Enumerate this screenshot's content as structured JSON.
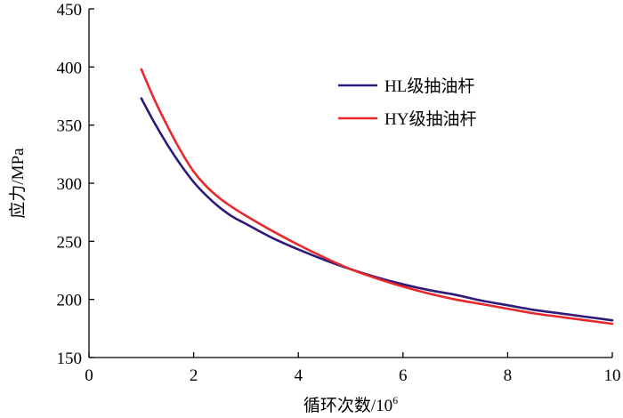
{
  "chart_data": {
    "type": "line",
    "title": "",
    "xlabel": "循环次数/10",
    "xlabel_superscript": "6",
    "ylabel": "应力/MPa",
    "xlim": [
      0,
      10
    ],
    "ylim": [
      150,
      450
    ],
    "x_ticks": [
      0,
      2,
      4,
      6,
      8,
      10
    ],
    "y_ticks": [
      150,
      200,
      250,
      300,
      350,
      400,
      450
    ],
    "grid": false,
    "legend_position": "top-right",
    "series": [
      {
        "name": "HL级抽油杆",
        "color": "#2e1a7a",
        "x": [
          1.0,
          1.25,
          1.5,
          1.75,
          2.0,
          2.25,
          2.5,
          2.75,
          3.0,
          3.5,
          4.0,
          4.5,
          5.0,
          5.5,
          6.0,
          6.5,
          7.0,
          7.5,
          8.0,
          8.5,
          9.0,
          9.5,
          10.0
        ],
        "y": [
          373,
          352,
          333,
          316,
          301,
          289,
          279,
          271,
          265,
          253,
          243,
          234,
          226,
          219,
          213,
          208,
          204,
          199,
          195,
          191,
          188,
          185,
          182
        ]
      },
      {
        "name": "HY级抽油杆",
        "color": "#e8282c",
        "x": [
          1.0,
          1.25,
          1.5,
          1.75,
          2.0,
          2.25,
          2.5,
          2.75,
          3.0,
          3.5,
          4.0,
          4.5,
          5.0,
          5.5,
          6.0,
          6.5,
          7.0,
          7.5,
          8.0,
          8.5,
          9.0,
          9.5,
          10.0
        ],
        "y": [
          398,
          372,
          349,
          328,
          310,
          297,
          287,
          279,
          272,
          259,
          247,
          236,
          226,
          218,
          211,
          205,
          200,
          196,
          192,
          188,
          185,
          182,
          179
        ]
      }
    ]
  }
}
